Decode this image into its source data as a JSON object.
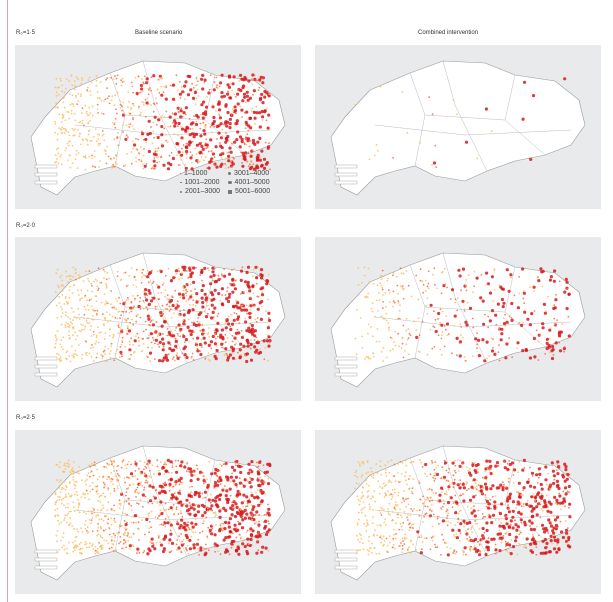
{
  "columns": [
    {
      "title": "Baseline scenario"
    },
    {
      "title": "Combined intervention"
    }
  ],
  "rows": [
    {
      "label": "R₀=1·5"
    },
    {
      "label": "R₀=2·0"
    },
    {
      "label": "R₀=2·5"
    }
  ],
  "legend": {
    "items": [
      "1–1000",
      "1001–2000",
      "2001–3000",
      "3001–4000",
      "4001–5000",
      "5001–6000"
    ]
  },
  "colors": {
    "sea": "#e9eaeb",
    "land": "#ffffff",
    "high": "#d7191c",
    "mid": "#f46d43",
    "low": "#fdbe63"
  }
}
